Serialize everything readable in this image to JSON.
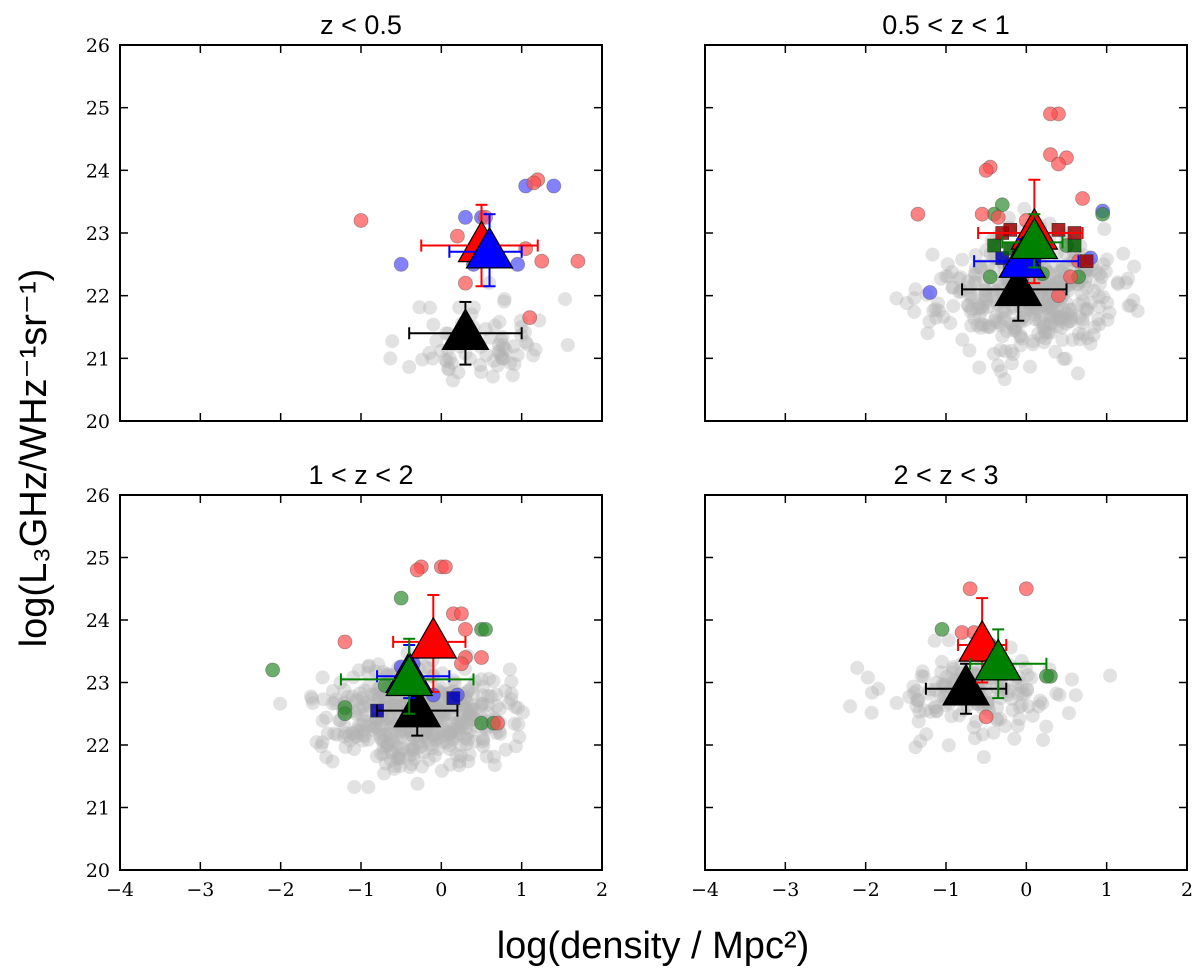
{
  "figure": {
    "xlabel": "log(density / Mpc²)",
    "ylabel": "log(L₃GHz/WHz⁻¹sr⁻¹)"
  },
  "chart_data": {
    "type": "scatter",
    "shared_axes": {
      "xlim": [
        -4,
        2
      ],
      "ylim": [
        20,
        26
      ],
      "xticks": [
        -4,
        -3,
        -2,
        -1,
        0,
        1,
        2
      ],
      "yticks": [
        20,
        21,
        22,
        23,
        24,
        25,
        26
      ],
      "xtick_labels": [
        "−4",
        "−3",
        "−2",
        "−1",
        "0",
        "1",
        "2"
      ],
      "ytick_labels": [
        "20",
        "21",
        "22",
        "23",
        "24",
        "25",
        "26"
      ],
      "grid": false
    },
    "panels": [
      {
        "title": "z < 0.5",
        "grey": {
          "n": 80,
          "cx": 0.5,
          "sx": 0.45,
          "cy": 21.25,
          "sy": 0.35,
          "seed": 11
        },
        "points": {
          "red": [
            [
              -1.0,
              23.2
            ],
            [
              0.55,
              23.25
            ],
            [
              1.2,
              23.85
            ],
            [
              1.15,
              23.8
            ],
            [
              1.1,
              21.65
            ],
            [
              1.7,
              22.55
            ],
            [
              1.25,
              22.55
            ],
            [
              0.3,
              22.2
            ],
            [
              0.2,
              22.95
            ],
            [
              1.05,
              22.75
            ]
          ],
          "blue": [
            [
              -0.5,
              22.5
            ],
            [
              0.3,
              23.25
            ],
            [
              0.5,
              23.25
            ],
            [
              1.05,
              23.75
            ],
            [
              1.4,
              23.75
            ],
            [
              0.95,
              22.5
            ],
            [
              0.4,
              22.5
            ]
          ],
          "green": [],
          "red_sq": [],
          "green_sq": [],
          "blue_sq": []
        },
        "means": [
          {
            "color": "black",
            "x": 0.3,
            "y": 21.4,
            "xerr": [
              0.7,
              0.7
            ],
            "yerr": [
              0.5,
              0.5
            ]
          },
          {
            "color": "red",
            "x": 0.5,
            "y": 22.8,
            "xerr": [
              0.75,
              0.7
            ],
            "yerr": [
              0.65,
              0.65
            ]
          },
          {
            "color": "blue",
            "x": 0.6,
            "y": 22.7,
            "xerr": [
              0.5,
              0.4
            ],
            "yerr": [
              0.55,
              0.6
            ]
          }
        ]
      },
      {
        "title": "0.5 < z < 1",
        "grey": {
          "n": 420,
          "cx": 0.0,
          "sx": 0.55,
          "cy": 22.0,
          "sy": 0.45,
          "seed": 23
        },
        "points": {
          "red": [
            [
              -0.45,
              24.05
            ],
            [
              -0.5,
              24.0
            ],
            [
              0.4,
              24.9
            ],
            [
              0.3,
              24.9
            ],
            [
              0.5,
              24.2
            ],
            [
              0.3,
              24.25
            ],
            [
              0.4,
              24.1
            ],
            [
              -0.55,
              23.3
            ],
            [
              -1.35,
              23.3
            ],
            [
              0.0,
              23.2
            ],
            [
              -0.35,
              23.25
            ],
            [
              0.7,
              23.55
            ],
            [
              0.55,
              22.3
            ],
            [
              0.4,
              22.0
            ],
            [
              0.65,
              22.55
            ],
            [
              -0.05,
              22.3
            ]
          ],
          "blue": [
            [
              -1.2,
              22.05
            ],
            [
              0.95,
              23.35
            ],
            [
              0.8,
              22.6
            ],
            [
              -0.2,
              22.5
            ],
            [
              -0.2,
              22.45
            ]
          ],
          "green": [
            [
              -0.45,
              22.3
            ],
            [
              -0.4,
              23.3
            ],
            [
              -0.3,
              23.45
            ],
            [
              0.95,
              23.3
            ],
            [
              0.65,
              22.3
            ],
            [
              0.5,
              22.8
            ],
            [
              0.2,
              22.35
            ]
          ],
          "red_sq": [
            [
              -0.3,
              23.0
            ],
            [
              -0.2,
              23.05
            ],
            [
              0.75,
              22.55
            ],
            [
              0.6,
              23.0
            ],
            [
              0.4,
              23.05
            ]
          ],
          "green_sq": [
            [
              -0.4,
              22.8
            ],
            [
              0.6,
              22.8
            ],
            [
              -0.2,
              22.75
            ]
          ],
          "blue_sq": [
            [
              -0.3,
              22.6
            ],
            [
              0.1,
              22.55
            ]
          ]
        },
        "means": [
          {
            "color": "black",
            "x": -0.1,
            "y": 22.1,
            "xerr": [
              0.7,
              0.6
            ],
            "yerr": [
              0.5,
              0.6
            ]
          },
          {
            "color": "red",
            "x": 0.1,
            "y": 23.0,
            "xerr": [
              0.7,
              0.6
            ],
            "yerr": [
              0.8,
              0.85
            ]
          },
          {
            "color": "blue",
            "x": -0.05,
            "y": 22.55,
            "xerr": [
              0.6,
              0.7
            ],
            "yerr": [
              0.25,
              0.35
            ]
          },
          {
            "color": "green",
            "x": 0.1,
            "y": 22.85,
            "xerr": [
              0.4,
              0.35
            ],
            "yerr": [
              0.4,
              0.45
            ]
          }
        ]
      },
      {
        "title": "1 < z < 2",
        "grey": {
          "n": 480,
          "cx": -0.3,
          "sx": 0.55,
          "cy": 22.5,
          "sy": 0.4,
          "seed": 37
        },
        "points": {
          "red": [
            [
              -1.2,
              23.65
            ],
            [
              -0.25,
              24.85
            ],
            [
              -0.3,
              24.8
            ],
            [
              0.0,
              24.85
            ],
            [
              0.05,
              24.85
            ],
            [
              0.15,
              24.1
            ],
            [
              0.25,
              24.1
            ],
            [
              0.3,
              23.85
            ],
            [
              0.5,
              23.4
            ],
            [
              0.3,
              23.4
            ],
            [
              0.25,
              23.3
            ],
            [
              0.7,
              22.35
            ]
          ],
          "blue": [
            [
              -0.5,
              23.25
            ],
            [
              -0.35,
              23.3
            ],
            [
              -0.1,
              22.8
            ],
            [
              0.2,
              22.8
            ]
          ],
          "green": [
            [
              -2.1,
              23.2
            ],
            [
              -0.5,
              24.35
            ],
            [
              -1.2,
              22.6
            ],
            [
              -1.2,
              22.5
            ],
            [
              -0.7,
              22.95
            ],
            [
              0.5,
              23.85
            ],
            [
              0.55,
              23.85
            ],
            [
              0.5,
              22.35
            ],
            [
              0.65,
              22.35
            ]
          ],
          "red_sq": [],
          "green_sq": [],
          "blue_sq": [
            [
              -0.8,
              22.55
            ],
            [
              0.15,
              22.75
            ]
          ]
        },
        "means": [
          {
            "color": "black",
            "x": -0.3,
            "y": 22.55,
            "xerr": [
              0.5,
              0.5
            ],
            "yerr": [
              0.4,
              0.4
            ]
          },
          {
            "color": "red",
            "x": -0.1,
            "y": 23.65,
            "xerr": [
              0.5,
              0.4
            ],
            "yerr": [
              0.8,
              0.75
            ]
          },
          {
            "color": "blue",
            "x": -0.4,
            "y": 23.1,
            "xerr": [
              0.4,
              0.5
            ],
            "yerr": [
              0.35,
              0.5
            ]
          },
          {
            "color": "green",
            "x": -0.4,
            "y": 23.05,
            "xerr": [
              0.85,
              0.8
            ],
            "yerr": [
              0.55,
              0.65
            ]
          }
        ]
      },
      {
        "title": "2 < z < 3",
        "grey": {
          "n": 170,
          "cx": -0.6,
          "sx": 0.6,
          "cy": 22.8,
          "sy": 0.35,
          "seed": 53
        },
        "points": {
          "red": [
            [
              -0.7,
              24.5
            ],
            [
              0.0,
              24.5
            ],
            [
              -0.8,
              23.8
            ],
            [
              -0.65,
              23.8
            ],
            [
              -0.5,
              22.45
            ]
          ],
          "blue": [],
          "green": [
            [
              -1.05,
              23.85
            ],
            [
              -0.45,
              23.6
            ],
            [
              0.3,
              23.1
            ],
            [
              0.25,
              23.1
            ]
          ],
          "red_sq": [],
          "green_sq": [],
          "blue_sq": []
        },
        "means": [
          {
            "color": "black",
            "x": -0.75,
            "y": 22.9,
            "xerr": [
              0.5,
              0.5
            ],
            "yerr": [
              0.4,
              0.4
            ]
          },
          {
            "color": "red",
            "x": -0.55,
            "y": 23.6,
            "xerr": [
              0.3,
              0.3
            ],
            "yerr": [
              0.6,
              0.75
            ]
          },
          {
            "color": "green",
            "x": -0.35,
            "y": 23.3,
            "xerr": [
              0.35,
              0.6
            ],
            "yerr": [
              0.55,
              0.55
            ]
          }
        ]
      }
    ],
    "colors": {
      "black": "#000000",
      "red": "#ff0000",
      "blue": "#0000ff",
      "green": "#008000",
      "grey_point": "#b3b3b3",
      "red_point": "#ff4d4d",
      "blue_point": "#4d4dff",
      "green_point": "#2e8b2e",
      "red_square": "#a00000",
      "green_square": "#006000",
      "blue_square": "#0000b0"
    }
  }
}
